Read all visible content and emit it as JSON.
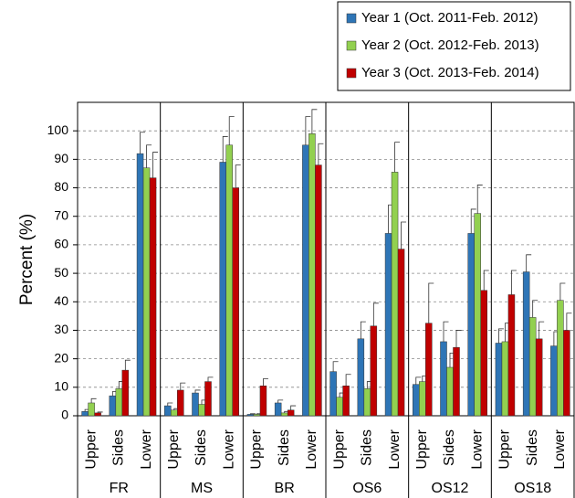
{
  "chart_data": {
    "type": "bar",
    "y_label": "Percent (%)",
    "groups": [
      "FR",
      "MS",
      "BR",
      "OS6",
      "OS12",
      "OS18"
    ],
    "categories": [
      "Upper",
      "Sides",
      "Lower",
      "Upper",
      "Sides",
      "Lower",
      "Upper",
      "Sides",
      "Lower",
      "Upper",
      "Sides",
      "Lower",
      "Upper",
      "Sides",
      "Lower",
      "Upper",
      "Sides",
      "Lower"
    ],
    "series": [
      {
        "name": "Year 1 (Oct. 2011-Feb. 2012)",
        "color": "#2e75b6",
        "values": [
          1.5,
          7,
          92,
          3.5,
          8,
          89,
          0.5,
          4.5,
          95,
          15.5,
          27,
          64,
          11,
          26,
          64,
          25.5,
          50.5,
          24.5
        ],
        "errors": [
          0.7,
          1.5,
          7.5,
          1,
          1,
          9,
          0.2,
          1,
          10,
          3.5,
          6,
          10,
          2.5,
          7,
          8.5,
          5,
          6,
          5
        ]
      },
      {
        "name": "Year 2 (Oct. 2012-Feb. 2013)",
        "color": "#92d050",
        "values": [
          4.5,
          9.5,
          87,
          2,
          4,
          95,
          0.5,
          1,
          99,
          6.5,
          9.5,
          85.5,
          12,
          17,
          71,
          26,
          34.5,
          40.5
        ],
        "errors": [
          1.5,
          2.5,
          8,
          0.5,
          1.5,
          10,
          0.2,
          0.5,
          8.5,
          1.5,
          2.5,
          10.5,
          2,
          5,
          10,
          6.5,
          6,
          6
        ]
      },
      {
        "name": "Year 3 (Oct. 2013-Feb. 2014)",
        "color": "#c00000",
        "values": [
          1,
          16,
          83.5,
          9,
          12,
          80,
          10.5,
          2,
          88,
          10.5,
          31.5,
          58.5,
          32.5,
          24,
          44,
          42.5,
          27,
          30
        ],
        "errors": [
          0.3,
          3.5,
          9,
          2.5,
          1.5,
          8,
          2.5,
          1.5,
          7.5,
          4,
          8,
          9.5,
          14,
          6,
          7,
          8.5,
          6,
          6
        ]
      }
    ],
    "ylim": [
      0,
      110
    ],
    "yticks": [
      0,
      10,
      20,
      30,
      40,
      50,
      60,
      70,
      80,
      90,
      100
    ],
    "grid": true
  }
}
